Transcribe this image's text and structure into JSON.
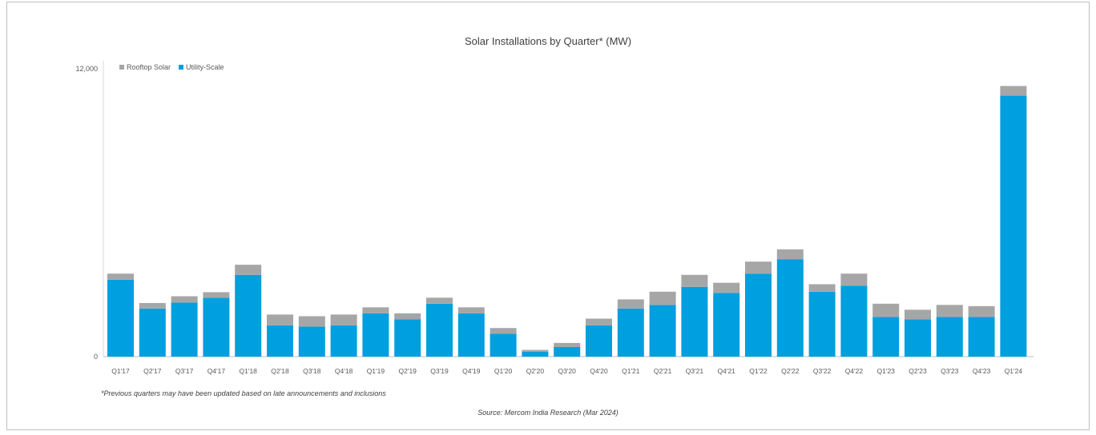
{
  "chart_data": {
    "type": "bar",
    "stacked": true,
    "title": "Solar Installations by Quarter* (MW)",
    "xlabel": "",
    "ylabel": "",
    "ylim": [
      0,
      12000
    ],
    "y_tick_labels": [
      "0",
      "12,000"
    ],
    "legend_position": "top-left",
    "grid": false,
    "categories": [
      "Q1'17",
      "Q2'17",
      "Q3'17",
      "Q4'17",
      "Q1'18",
      "Q2'18",
      "Q3'18",
      "Q4'18",
      "Q1'19",
      "Q2'19",
      "Q3'19",
      "Q4'19",
      "Q1'20",
      "Q2'20",
      "Q3'20",
      "Q4'20",
      "Q1'21",
      "Q2'21",
      "Q3'21",
      "Q4'21",
      "Q1'22",
      "Q2'22",
      "Q3'22",
      "Q4'22",
      "Q1'23",
      "Q2'23",
      "Q3'23",
      "Q4'23",
      "Q1'24"
    ],
    "series": [
      {
        "name": "Utility-Scale",
        "color": "#009fdf",
        "values": [
          3200,
          2000,
          2250,
          2450,
          3400,
          1300,
          1250,
          1300,
          1800,
          1550,
          2200,
          1800,
          950,
          200,
          400,
          1300,
          2000,
          2150,
          2900,
          2650,
          3450,
          4050,
          2700,
          2950,
          1650,
          1550,
          1650,
          1650,
          10850
        ]
      },
      {
        "name": "Rooftop Solar",
        "color": "#a6a6a6",
        "values": [
          250,
          230,
          260,
          230,
          420,
          450,
          430,
          450,
          250,
          250,
          250,
          250,
          240,
          80,
          170,
          280,
          380,
          550,
          500,
          420,
          500,
          410,
          310,
          500,
          550,
          400,
          500,
          450,
          400
        ]
      }
    ],
    "footnote": "*Previous quarters may have been updated based on late announcements and inclusions",
    "source": "Source: Mercom India Research (Mar 2024)"
  }
}
